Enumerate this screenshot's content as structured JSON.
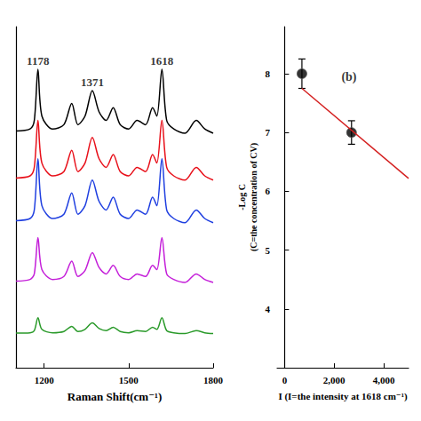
{
  "chart_data": [
    {
      "type": "line",
      "xlabel": "Raman Shift(cm⁻¹)",
      "x": [
        1100,
        1150,
        1165,
        1178,
        1192,
        1230,
        1270,
        1298,
        1320,
        1345,
        1371,
        1395,
        1420,
        1445,
        1470,
        1500,
        1530,
        1560,
        1585,
        1600,
        1618,
        1635,
        1660,
        1700,
        1740,
        1770,
        1800
      ],
      "series": [
        {
          "color": "#000000",
          "values": [
            55.5,
            56,
            58,
            70,
            59,
            56,
            57,
            62,
            57,
            59,
            65,
            60,
            58,
            61,
            57,
            56,
            58,
            57,
            61,
            59,
            70,
            58,
            56,
            55,
            58,
            56,
            55
          ]
        },
        {
          "color": "#e8101a",
          "values": [
            44.5,
            45,
            47,
            58,
            48,
            45,
            46,
            51,
            46,
            48,
            54,
            49,
            47,
            50,
            46,
            45,
            47,
            46,
            50,
            48,
            58,
            47,
            45,
            44,
            47,
            45,
            44
          ]
        },
        {
          "color": "#1f3fe0",
          "values": [
            34.5,
            35,
            37,
            49,
            38,
            35,
            36,
            41,
            36,
            38,
            44,
            39,
            37,
            40,
            36,
            35,
            37,
            36,
            40,
            38,
            49,
            37,
            35,
            34,
            37,
            35,
            34
          ]
        },
        {
          "color": "#c41fd9",
          "values": [
            20.3,
            20.7,
            22,
            30.5,
            23,
            20.7,
            21.4,
            25,
            21.4,
            22.8,
            27,
            23.5,
            22,
            24,
            21.4,
            20.7,
            22,
            21.4,
            24,
            23,
            30.5,
            22,
            20.7,
            20,
            22,
            20.7,
            20
          ]
        },
        {
          "color": "#2a9a2a",
          "values": [
            8.1,
            8.2,
            8.7,
            11.7,
            9,
            8.2,
            8.5,
            9.7,
            8.5,
            9,
            10.5,
            9.2,
            8.7,
            9.5,
            8.5,
            8.2,
            8.7,
            8.5,
            9.5,
            9,
            11.7,
            8.7,
            8.2,
            8,
            8.7,
            8.2,
            8
          ]
        }
      ],
      "annotations": [
        {
          "text": "1178",
          "x": 1178,
          "y": 70
        },
        {
          "text": "1371",
          "x": 1371,
          "y": 65
        },
        {
          "text": "1618",
          "x": 1618,
          "y": 70
        }
      ],
      "xlim": [
        1100,
        1800
      ],
      "xticks": [
        1200,
        1500,
        1800
      ],
      "ylim": [
        0,
        80
      ],
      "tick_labels": "x",
      "grid": false
    },
    {
      "type": "scatter",
      "ylabel": "-Log C",
      "ylabel_note": "(C=the concentration of CV)",
      "xlabel": "I (I=the intensity at 1618 cm⁻¹)",
      "x": [
        700,
        2700
      ],
      "values": [
        8.0,
        7.0
      ],
      "errors": [
        0.25,
        0.2
      ],
      "color": "#000000",
      "marker": "circle",
      "fit": {
        "x": [
          700,
          5000
        ],
        "values": [
          7.75,
          6.22
        ],
        "color": "#d42020",
        "line_style": "solid"
      },
      "annotations": [
        {
          "text": "(b)",
          "x": 2600,
          "y": 7.95
        }
      ],
      "xlim": [
        -300,
        5000
      ],
      "xticks": [
        0,
        {
          "value": 2000,
          "label": "2,000"
        },
        {
          "value": 4000,
          "label": "4,000"
        }
      ],
      "ylim": [
        3,
        8.8
      ],
      "yticks": [
        4,
        5,
        6,
        7,
        8
      ],
      "grid": false
    }
  ]
}
